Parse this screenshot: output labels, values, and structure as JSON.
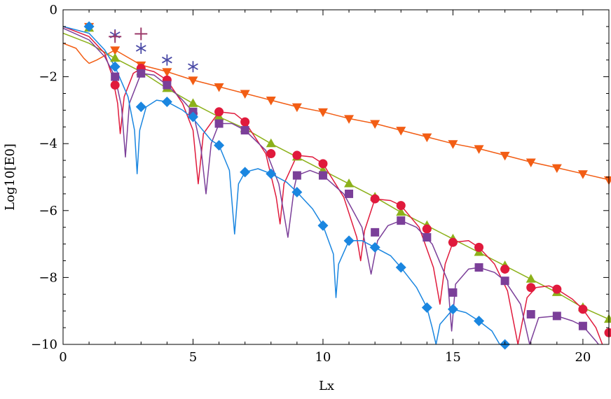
{
  "chart_data": {
    "type": "line",
    "title": "",
    "xlabel": "Lx",
    "ylabel": "Log10[E0]",
    "xlim": [
      0,
      21
    ],
    "ylim": [
      -10,
      0
    ],
    "x_ticks": [
      0,
      5,
      10,
      15,
      20
    ],
    "y_ticks": [
      0,
      -2,
      -4,
      -6,
      -8,
      -10
    ],
    "x_tick_labels": [
      "0",
      "5",
      "10",
      "15",
      "20"
    ],
    "y_tick_labels": [
      "0",
      "−2",
      "−4",
      "−6",
      "−8",
      "−10"
    ],
    "grid": false,
    "legend": "none",
    "series": [
      {
        "marker": "triangle-down",
        "color": "#f25d14",
        "x": [
          1,
          2,
          3,
          4,
          5,
          6,
          7,
          8,
          9,
          10,
          11,
          12,
          13,
          14,
          15,
          16,
          17,
          18,
          19,
          20,
          21
        ],
        "y": [
          -0.5,
          -1.2,
          -1.65,
          -1.85,
          -2.1,
          -2.3,
          -2.5,
          -2.7,
          -2.9,
          -3.05,
          -3.25,
          -3.4,
          -3.6,
          -3.8,
          -4.0,
          -4.15,
          -4.35,
          -4.55,
          -4.72,
          -4.9,
          -5.08
        ],
        "curve": [
          [
            0,
            -1.0
          ],
          [
            0.5,
            -1.15
          ],
          [
            0.8,
            -1.45
          ],
          [
            1.0,
            -1.6
          ],
          [
            1.3,
            -1.5
          ],
          [
            2,
            -1.2
          ],
          [
            3,
            -1.65
          ],
          [
            4,
            -1.85
          ],
          [
            5,
            -2.1
          ],
          [
            6,
            -2.3
          ],
          [
            7,
            -2.5
          ],
          [
            8,
            -2.7
          ],
          [
            9,
            -2.9
          ],
          [
            10,
            -3.05
          ],
          [
            11,
            -3.25
          ],
          [
            12,
            -3.4
          ],
          [
            13,
            -3.6
          ],
          [
            14,
            -3.8
          ],
          [
            15,
            -4.0
          ],
          [
            16,
            -4.15
          ],
          [
            17,
            -4.35
          ],
          [
            18,
            -4.55
          ],
          [
            19,
            -4.72
          ],
          [
            20,
            -4.9
          ],
          [
            21,
            -5.08
          ]
        ]
      },
      {
        "marker": "triangle-up",
        "color": "#8cb11a",
        "x": [
          1,
          2,
          3,
          4,
          5,
          6,
          7,
          8,
          9,
          10,
          11,
          12,
          13,
          14,
          15,
          16,
          17,
          18,
          19,
          20,
          21
        ],
        "y": [
          -0.55,
          -1.45,
          -1.85,
          -2.35,
          -2.8,
          -3.2,
          -3.55,
          -4.0,
          -4.4,
          -4.8,
          -5.2,
          -5.6,
          -6.05,
          -6.45,
          -6.85,
          -7.25,
          -7.65,
          -8.05,
          -8.45,
          -8.9,
          -9.25
        ],
        "curve": [
          [
            0,
            -0.7
          ],
          [
            1,
            -1.0
          ],
          [
            2,
            -1.45
          ],
          [
            3,
            -1.85
          ],
          [
            4,
            -2.35
          ],
          [
            5,
            -2.8
          ],
          [
            6,
            -3.2
          ],
          [
            7,
            -3.55
          ],
          [
            8,
            -4.0
          ],
          [
            9,
            -4.4
          ],
          [
            10,
            -4.8
          ],
          [
            11,
            -5.2
          ],
          [
            12,
            -5.6
          ],
          [
            13,
            -6.05
          ],
          [
            14,
            -6.45
          ],
          [
            15,
            -6.85
          ],
          [
            16,
            -7.25
          ],
          [
            17,
            -7.65
          ],
          [
            18,
            -8.05
          ],
          [
            19,
            -8.45
          ],
          [
            20,
            -8.9
          ],
          [
            21,
            -9.25
          ]
        ]
      },
      {
        "marker": "circle",
        "color": "#e01a3c",
        "x": [
          2,
          3,
          4,
          5,
          6,
          7,
          8,
          9,
          10,
          12,
          13,
          14,
          15,
          16,
          17,
          18,
          19,
          20,
          21
        ],
        "y": [
          -2.25,
          -1.75,
          -2.1,
          -3.1,
          -3.05,
          -3.35,
          -4.3,
          -4.35,
          -4.6,
          -5.65,
          -5.85,
          -6.55,
          -6.95,
          -7.1,
          -7.75,
          -8.3,
          -8.35,
          -8.95,
          -9.65
        ],
        "curve": [
          [
            0,
            -0.5
          ],
          [
            1,
            -0.8
          ],
          [
            1.6,
            -1.3
          ],
          [
            1.9,
            -2.0
          ],
          [
            2.1,
            -2.8
          ],
          [
            2.2,
            -3.7
          ],
          [
            2.35,
            -2.6
          ],
          [
            2.7,
            -1.9
          ],
          [
            3.0,
            -1.75
          ],
          [
            3.5,
            -1.85
          ],
          [
            4.0,
            -2.1
          ],
          [
            4.6,
            -2.8
          ],
          [
            5.0,
            -3.6
          ],
          [
            5.2,
            -5.2
          ],
          [
            5.4,
            -3.7
          ],
          [
            6.0,
            -3.05
          ],
          [
            6.6,
            -3.1
          ],
          [
            7.0,
            -3.35
          ],
          [
            7.8,
            -4.3
          ],
          [
            8.2,
            -5.6
          ],
          [
            8.35,
            -6.4
          ],
          [
            8.5,
            -5.2
          ],
          [
            9.0,
            -4.35
          ],
          [
            9.6,
            -4.4
          ],
          [
            10.0,
            -4.6
          ],
          [
            10.8,
            -5.6
          ],
          [
            11.3,
            -6.8
          ],
          [
            11.45,
            -7.5
          ],
          [
            11.6,
            -6.6
          ],
          [
            12.0,
            -5.65
          ],
          [
            12.6,
            -5.7
          ],
          [
            13.0,
            -5.85
          ],
          [
            13.7,
            -6.5
          ],
          [
            14.25,
            -7.7
          ],
          [
            14.5,
            -8.8
          ],
          [
            14.7,
            -7.6
          ],
          [
            15.0,
            -6.95
          ],
          [
            15.6,
            -6.9
          ],
          [
            16.0,
            -7.1
          ],
          [
            16.6,
            -7.6
          ],
          [
            17.1,
            -8.4
          ],
          [
            17.5,
            -10.0
          ],
          [
            17.85,
            -8.6
          ],
          [
            18.2,
            -8.3
          ],
          [
            18.7,
            -8.25
          ],
          [
            19.0,
            -8.35
          ],
          [
            19.6,
            -8.65
          ],
          [
            20.0,
            -8.95
          ],
          [
            20.5,
            -9.5
          ],
          [
            20.75,
            -10.0
          ]
        ]
      },
      {
        "marker": "square",
        "color": "#7b3f99",
        "x": [
          2,
          3,
          4,
          5,
          6,
          7,
          9,
          10,
          11,
          12,
          13,
          14,
          15,
          16,
          17,
          18,
          19,
          20
        ],
        "y": [
          -2.0,
          -1.9,
          -2.25,
          -3.05,
          -3.4,
          -3.6,
          -4.95,
          -4.95,
          -5.5,
          -6.65,
          -6.3,
          -6.8,
          -8.45,
          -7.7,
          -8.1,
          -9.1,
          -9.15,
          -9.45
        ],
        "curve": [
          [
            0,
            -0.55
          ],
          [
            1,
            -0.9
          ],
          [
            1.6,
            -1.4
          ],
          [
            2.0,
            -2.0
          ],
          [
            2.25,
            -2.9
          ],
          [
            2.4,
            -4.4
          ],
          [
            2.55,
            -2.8
          ],
          [
            3.0,
            -1.9
          ],
          [
            3.5,
            -1.95
          ],
          [
            4.0,
            -2.25
          ],
          [
            4.6,
            -2.7
          ],
          [
            5.0,
            -3.05
          ],
          [
            5.3,
            -4.1
          ],
          [
            5.5,
            -5.5
          ],
          [
            5.7,
            -4.0
          ],
          [
            6.0,
            -3.4
          ],
          [
            6.5,
            -3.4
          ],
          [
            7.0,
            -3.6
          ],
          [
            7.8,
            -4.2
          ],
          [
            8.3,
            -5.2
          ],
          [
            8.65,
            -6.8
          ],
          [
            8.9,
            -5.3
          ],
          [
            9.0,
            -4.95
          ],
          [
            9.5,
            -4.8
          ],
          [
            10.0,
            -4.95
          ],
          [
            10.8,
            -5.5
          ],
          [
            11.5,
            -6.5
          ],
          [
            11.85,
            -7.9
          ],
          [
            12.1,
            -6.9
          ],
          [
            12.5,
            -6.45
          ],
          [
            13.0,
            -6.3
          ],
          [
            13.6,
            -6.5
          ],
          [
            14.2,
            -7.0
          ],
          [
            14.8,
            -8.1
          ],
          [
            14.95,
            -9.6
          ],
          [
            15.1,
            -8.2
          ],
          [
            15.6,
            -7.75
          ],
          [
            16.0,
            -7.7
          ],
          [
            16.6,
            -7.85
          ],
          [
            17.0,
            -8.1
          ],
          [
            17.6,
            -8.8
          ],
          [
            17.95,
            -10.0
          ],
          [
            18.3,
            -9.2
          ],
          [
            19.0,
            -9.15
          ],
          [
            19.6,
            -9.3
          ],
          [
            20.0,
            -9.45
          ],
          [
            20.5,
            -9.9
          ],
          [
            20.6,
            -10.0
          ]
        ]
      },
      {
        "marker": "diamond",
        "color": "#1a86e0",
        "x": [
          1,
          2,
          3,
          4,
          5,
          6,
          7,
          8,
          9,
          10,
          11,
          12,
          13,
          14,
          15,
          16,
          17
        ],
        "y": [
          -0.5,
          -1.7,
          -2.9,
          -2.75,
          -3.2,
          -4.05,
          -4.85,
          -4.9,
          -5.45,
          -6.45,
          -6.9,
          -7.1,
          -7.7,
          -8.9,
          -8.95,
          -9.3,
          -10.0
        ],
        "curve": [
          [
            0,
            -0.5
          ],
          [
            1,
            -0.7
          ],
          [
            1.6,
            -1.2
          ],
          [
            2.0,
            -1.7
          ],
          [
            2.5,
            -2.6
          ],
          [
            2.75,
            -3.6
          ],
          [
            2.85,
            -4.9
          ],
          [
            2.95,
            -3.6
          ],
          [
            3.2,
            -2.9
          ],
          [
            3.6,
            -2.7
          ],
          [
            4.0,
            -2.75
          ],
          [
            4.6,
            -3.0
          ],
          [
            5.0,
            -3.25
          ],
          [
            5.7,
            -3.9
          ],
          [
            6.0,
            -4.05
          ],
          [
            6.4,
            -4.8
          ],
          [
            6.6,
            -6.7
          ],
          [
            6.75,
            -5.2
          ],
          [
            7.0,
            -4.85
          ],
          [
            7.5,
            -4.75
          ],
          [
            8.0,
            -4.9
          ],
          [
            8.6,
            -5.15
          ],
          [
            9.0,
            -5.45
          ],
          [
            9.6,
            -5.95
          ],
          [
            10.0,
            -6.45
          ],
          [
            10.4,
            -7.3
          ],
          [
            10.5,
            -8.6
          ],
          [
            10.6,
            -7.6
          ],
          [
            11.0,
            -6.9
          ],
          [
            11.5,
            -6.9
          ],
          [
            12.0,
            -7.1
          ],
          [
            12.6,
            -7.35
          ],
          [
            13.0,
            -7.7
          ],
          [
            13.6,
            -8.3
          ],
          [
            14.0,
            -8.9
          ],
          [
            14.2,
            -9.5
          ],
          [
            14.35,
            -10.0
          ],
          [
            14.5,
            -9.4
          ],
          [
            15.0,
            -8.95
          ],
          [
            15.5,
            -9.05
          ],
          [
            16.0,
            -9.3
          ],
          [
            16.5,
            -9.6
          ],
          [
            16.8,
            -10.0
          ]
        ]
      },
      {
        "marker": "asterisk",
        "color": "#4a4aa6",
        "x": [
          2,
          3,
          4,
          5
        ],
        "y": [
          -0.75,
          -1.15,
          -1.5,
          -1.7
        ],
        "curve": []
      },
      {
        "marker": "plus",
        "color": "#9b3a6a",
        "x": [
          2,
          3
        ],
        "y": [
          -0.8,
          -0.72
        ],
        "curve": []
      }
    ]
  }
}
